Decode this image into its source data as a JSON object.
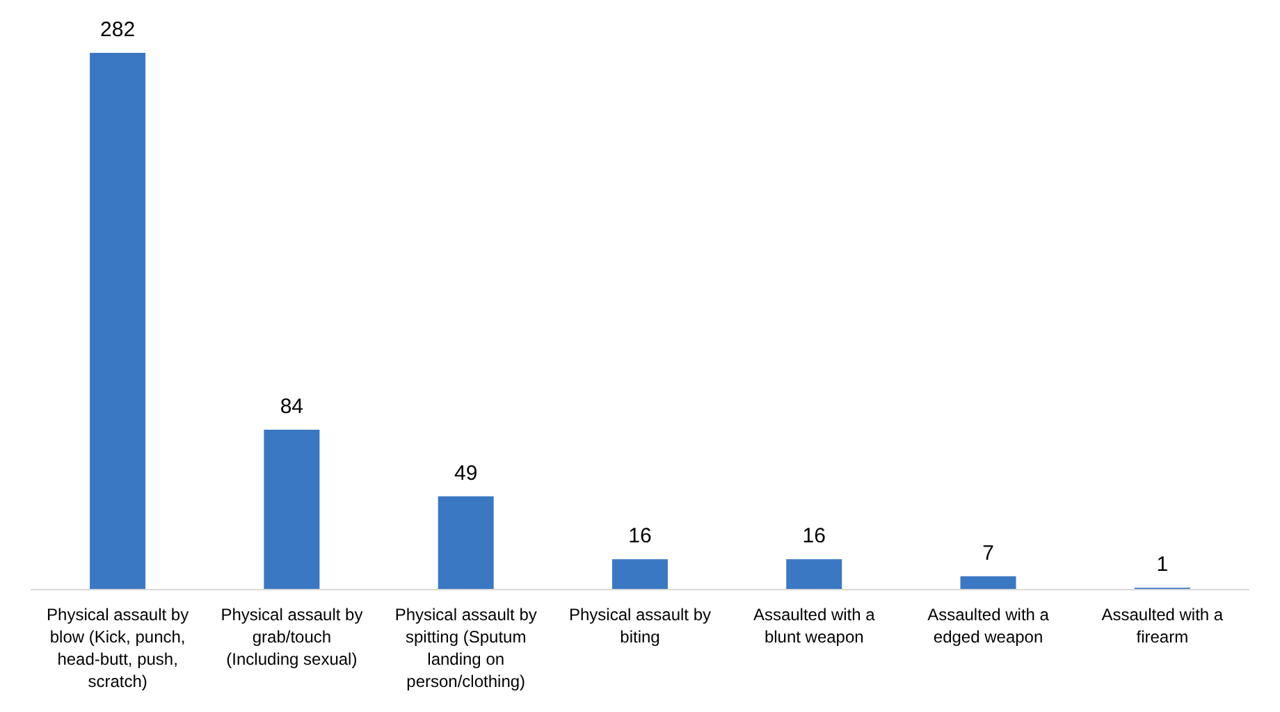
{
  "chart_data": {
    "type": "bar",
    "categories": [
      "Physical assault by blow (Kick, punch, head-butt, push, scratch)",
      "Physical assault by grab/touch (Including sexual)",
      "Physical assault by spitting (Sputum landing on person/clothing)",
      "Physical assault by biting",
      "Assaulted with a blunt weapon",
      "Assaulted with a edged weapon",
      "Assaulted with a firearm"
    ],
    "values": [
      282,
      84,
      49,
      16,
      16,
      7,
      1
    ],
    "color": "#3b78c4",
    "data_labels": true
  }
}
